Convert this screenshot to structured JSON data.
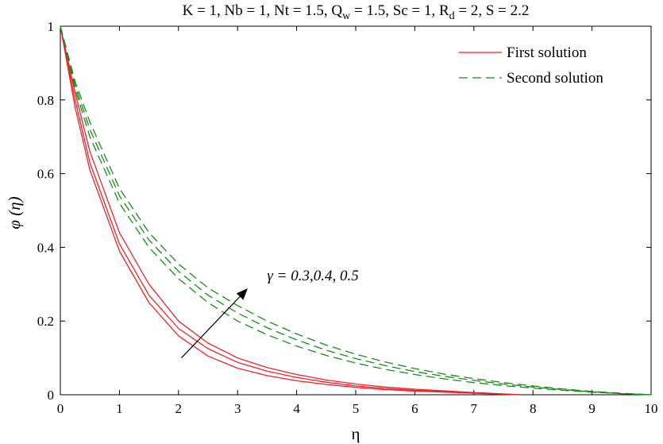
{
  "chart_data": {
    "type": "line",
    "title_parts": {
      "prefix": "K = 1, Nb = 1, Nt = 1.5, Q",
      "sub1": "w",
      "middle": " = 1.5, Sc = 1, R",
      "sub2": "d",
      "suffix": " = 2, S = 2.2"
    },
    "xlabel": "η",
    "ylabel": "φ (η)",
    "xlim": [
      0,
      10
    ],
    "ylim": [
      0,
      1
    ],
    "x_ticks": [
      "0",
      "1",
      "2",
      "3",
      "4",
      "5",
      "6",
      "7",
      "8",
      "9",
      "10"
    ],
    "y_ticks": [
      "0",
      "0.2",
      "0.4",
      "0.6",
      "0.8",
      "1"
    ],
    "grid": false,
    "legend_position": "top-right",
    "legend": [
      {
        "label": "First solution",
        "color": "#e8262a",
        "dash": "solid"
      },
      {
        "label": "Second solution",
        "color": "#1b8a1b",
        "dash": "dashed"
      }
    ],
    "annotation": {
      "text": "γ = 0.3,0.4, 0.5",
      "arrow_from": [
        2.05,
        0.1
      ],
      "arrow_to": [
        3.15,
        0.285
      ],
      "text_anchor": [
        3.5,
        0.31
      ]
    },
    "series": [
      {
        "name": "First solution",
        "color": "#e8262a",
        "dash": "solid",
        "x": [
          0,
          0.25,
          0.5,
          1,
          1.5,
          2,
          2.5,
          3,
          3.5,
          4,
          4.5,
          5,
          5.5,
          6,
          7,
          7.8
        ],
        "values": [
          1.0,
          0.78,
          0.61,
          0.39,
          0.25,
          0.16,
          0.105,
          0.072,
          0.052,
          0.038,
          0.028,
          0.02,
          0.014,
          0.01,
          0.004,
          0.0
        ]
      },
      {
        "name": "First solution",
        "color": "#e8262a",
        "dash": "solid",
        "x": [
          0,
          0.25,
          0.5,
          1,
          1.5,
          2,
          2.5,
          3,
          3.5,
          4,
          4.5,
          5,
          5.5,
          6,
          7,
          7.8
        ],
        "values": [
          1.0,
          0.8,
          0.63,
          0.41,
          0.27,
          0.18,
          0.125,
          0.088,
          0.064,
          0.047,
          0.034,
          0.024,
          0.017,
          0.012,
          0.005,
          0.0
        ]
      },
      {
        "name": "First solution",
        "color": "#e8262a",
        "dash": "solid",
        "x": [
          0,
          0.25,
          0.5,
          1,
          1.5,
          2,
          2.5,
          3,
          3.5,
          4,
          4.5,
          5,
          5.5,
          6,
          7,
          7.8
        ],
        "values": [
          1.0,
          0.82,
          0.66,
          0.44,
          0.3,
          0.2,
          0.14,
          0.1,
          0.074,
          0.055,
          0.04,
          0.029,
          0.021,
          0.015,
          0.006,
          0.0
        ]
      },
      {
        "name": "Second solution",
        "color": "#1b8a1b",
        "dash": "dashed",
        "x": [
          0,
          0.25,
          0.5,
          1,
          1.5,
          2,
          2.5,
          3,
          3.5,
          4,
          4.5,
          5,
          5.5,
          6,
          6.5,
          7,
          7.5,
          8,
          8.5,
          9,
          9.5,
          10
        ],
        "values": [
          1.0,
          0.83,
          0.7,
          0.52,
          0.4,
          0.315,
          0.25,
          0.2,
          0.163,
          0.132,
          0.107,
          0.086,
          0.069,
          0.055,
          0.043,
          0.033,
          0.025,
          0.018,
          0.012,
          0.007,
          0.003,
          0.0
        ]
      },
      {
        "name": "Second solution",
        "color": "#1b8a1b",
        "dash": "dashed",
        "x": [
          0,
          0.25,
          0.5,
          1,
          1.5,
          2,
          2.5,
          3,
          3.5,
          4,
          4.5,
          5,
          5.5,
          6,
          6.5,
          7,
          7.5,
          8,
          8.5,
          9,
          9.5,
          10
        ],
        "values": [
          1.0,
          0.84,
          0.72,
          0.54,
          0.42,
          0.335,
          0.27,
          0.222,
          0.182,
          0.149,
          0.121,
          0.098,
          0.079,
          0.063,
          0.05,
          0.039,
          0.029,
          0.021,
          0.014,
          0.008,
          0.003,
          0.0
        ]
      },
      {
        "name": "Second solution",
        "color": "#1b8a1b",
        "dash": "dashed",
        "x": [
          0,
          0.25,
          0.5,
          1,
          1.5,
          2,
          2.5,
          3,
          3.5,
          4,
          4.5,
          5,
          5.5,
          6,
          6.5,
          7,
          7.5,
          8,
          8.5,
          9,
          9.5,
          10
        ],
        "values": [
          1.0,
          0.85,
          0.74,
          0.56,
          0.44,
          0.355,
          0.29,
          0.242,
          0.2,
          0.165,
          0.135,
          0.11,
          0.089,
          0.071,
          0.056,
          0.044,
          0.033,
          0.024,
          0.016,
          0.009,
          0.004,
          0.0
        ]
      }
    ]
  }
}
